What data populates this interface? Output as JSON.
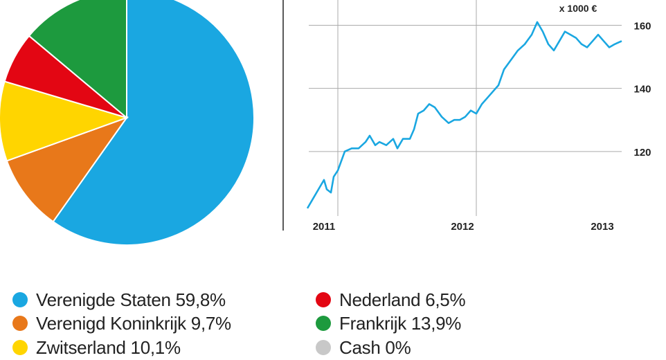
{
  "chart_data": [
    {
      "type": "pie",
      "slices": [
        {
          "label": "Verenigde Staten",
          "value": 59.8,
          "color": "#1aa7e1"
        },
        {
          "label": "Verenigd Koninkrijk",
          "value": 9.7,
          "color": "#e8781a"
        },
        {
          "label": "Zwitserland",
          "value": 10.1,
          "color": "#ffd500"
        },
        {
          "label": "Nederland",
          "value": 6.5,
          "color": "#e30613"
        },
        {
          "label": "Frankrijk",
          "value": 13.9,
          "color": "#1d9a3e"
        },
        {
          "label": "Cash",
          "value": 0,
          "color": "#c8c8c8"
        }
      ]
    },
    {
      "type": "line",
      "unit_label": "x 1000 €",
      "x_ticks": [
        "2011",
        "2012",
        "2013"
      ],
      "y_ticks": [
        120,
        140,
        160
      ],
      "ylim": [
        100,
        168
      ],
      "xlim": [
        2010.78,
        2013.05
      ],
      "grid": true,
      "series": [
        {
          "color": "#1aa7e1",
          "x": [
            2010.78,
            2010.82,
            2010.86,
            2010.9,
            2010.92,
            2010.95,
            2010.97,
            2011.0,
            2011.05,
            2011.1,
            2011.15,
            2011.2,
            2011.23,
            2011.27,
            2011.3,
            2011.35,
            2011.4,
            2011.43,
            2011.47,
            2011.52,
            2011.55,
            2011.58,
            2011.62,
            2011.66,
            2011.7,
            2011.75,
            2011.8,
            2011.84,
            2011.88,
            2011.92,
            2011.96,
            2012.0,
            2012.04,
            2012.08,
            2012.12,
            2012.16,
            2012.2,
            2012.25,
            2012.3,
            2012.35,
            2012.4,
            2012.44,
            2012.48,
            2012.52,
            2012.56,
            2012.6,
            2012.64,
            2012.68,
            2012.72,
            2012.76,
            2012.8,
            2012.84,
            2012.88,
            2012.92,
            2012.96,
            2013.0,
            2013.05
          ],
          "y": [
            102,
            105,
            108,
            111,
            108,
            107,
            112,
            114,
            120,
            121,
            121,
            123,
            125,
            122,
            123,
            122,
            124,
            121,
            124,
            124,
            127,
            132,
            133,
            135,
            134,
            131,
            129,
            130,
            130,
            131,
            133,
            132,
            135,
            137,
            139,
            141,
            146,
            149,
            152,
            154,
            157,
            161,
            158,
            154,
            152,
            155,
            158,
            157,
            156,
            154,
            153,
            155,
            157,
            155,
            153,
            154,
            155
          ]
        }
      ]
    }
  ],
  "legend": [
    {
      "label": "Verenigde Staten 59,8%",
      "color": "#1aa7e1"
    },
    {
      "label": "Verenigd Koninkrijk 9,7%",
      "color": "#e8781a"
    },
    {
      "label": "Zwitserland 10,1%",
      "color": "#ffd500"
    },
    {
      "label": "Nederland 6,5%",
      "color": "#e30613"
    },
    {
      "label": "Frankrijk 13,9%",
      "color": "#1d9a3e"
    },
    {
      "label": "Cash 0%",
      "color": "#c8c8c8"
    }
  ]
}
